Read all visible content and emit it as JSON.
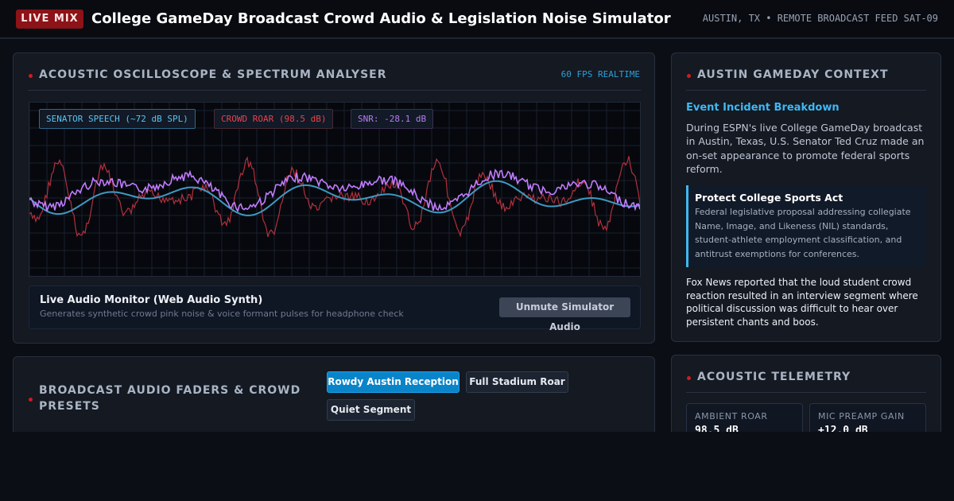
{
  "header": {
    "badge": "LIVE MIX",
    "title": "College GameDay Broadcast Crowd Audio & Legislation Noise Simulator",
    "meta": "AUSTIN, TX • REMOTE BROADCAST FEED SAT-09"
  },
  "oscilloscope": {
    "title": "ACOUSTIC OSCILLOSCOPE & SPECTRUM ANALYSER",
    "fps": "60 FPS REALTIME",
    "tags": {
      "senator": "SENATOR SPEECH (~72 dB SPL)",
      "crowd": "CROWD ROAR (98.5 dB)",
      "snr": "SNR: -28.1 dB"
    },
    "colors": {
      "senator": "#3d9ac2",
      "crowd": "#b2303d",
      "mix": "#c07cff",
      "grid": "#1a2130"
    }
  },
  "monitor": {
    "title": "Live Audio Monitor (Web Audio Synth)",
    "subtitle": "Generates synthetic crowd pink noise & voice formant pulses for headphone check",
    "button": "Unmute Simulator Audio"
  },
  "context": {
    "title": "AUSTIN GAMEDAY CONTEXT",
    "subheading": "Event Incident Breakdown",
    "paragraph1": "During ESPN's live College GameDay broadcast in Austin, Texas, U.S. Senator Ted Cruz made an on-set appearance to promote federal sports reform.",
    "act_title": "Protect College Sports Act",
    "act_text": "Federal legislative proposal addressing collegiate Name, Image, and Likeness (NIL) standards, student-athlete employment classification, and antitrust exemptions for conferences.",
    "paragraph2": "Fox News reported that the loud student crowd reaction resulted in an interview segment where political discussion was difficult to hear over persistent chants and boos."
  },
  "faders": {
    "title": "BROADCAST AUDIO FADERS & CROWD PRESETS",
    "presets": [
      "Rowdy Austin Reception",
      "Full Stadium Roar",
      "Quiet Segment"
    ],
    "active_preset": "Rowdy Austin Reception"
  },
  "telemetry": {
    "title": "ACOUSTIC TELEMETRY",
    "cards": [
      {
        "label": "AMBIENT ROAR",
        "value": "98.5 dB"
      },
      {
        "label": "MIC PREAMP GAIN",
        "value": "+12.0 dB"
      }
    ]
  }
}
